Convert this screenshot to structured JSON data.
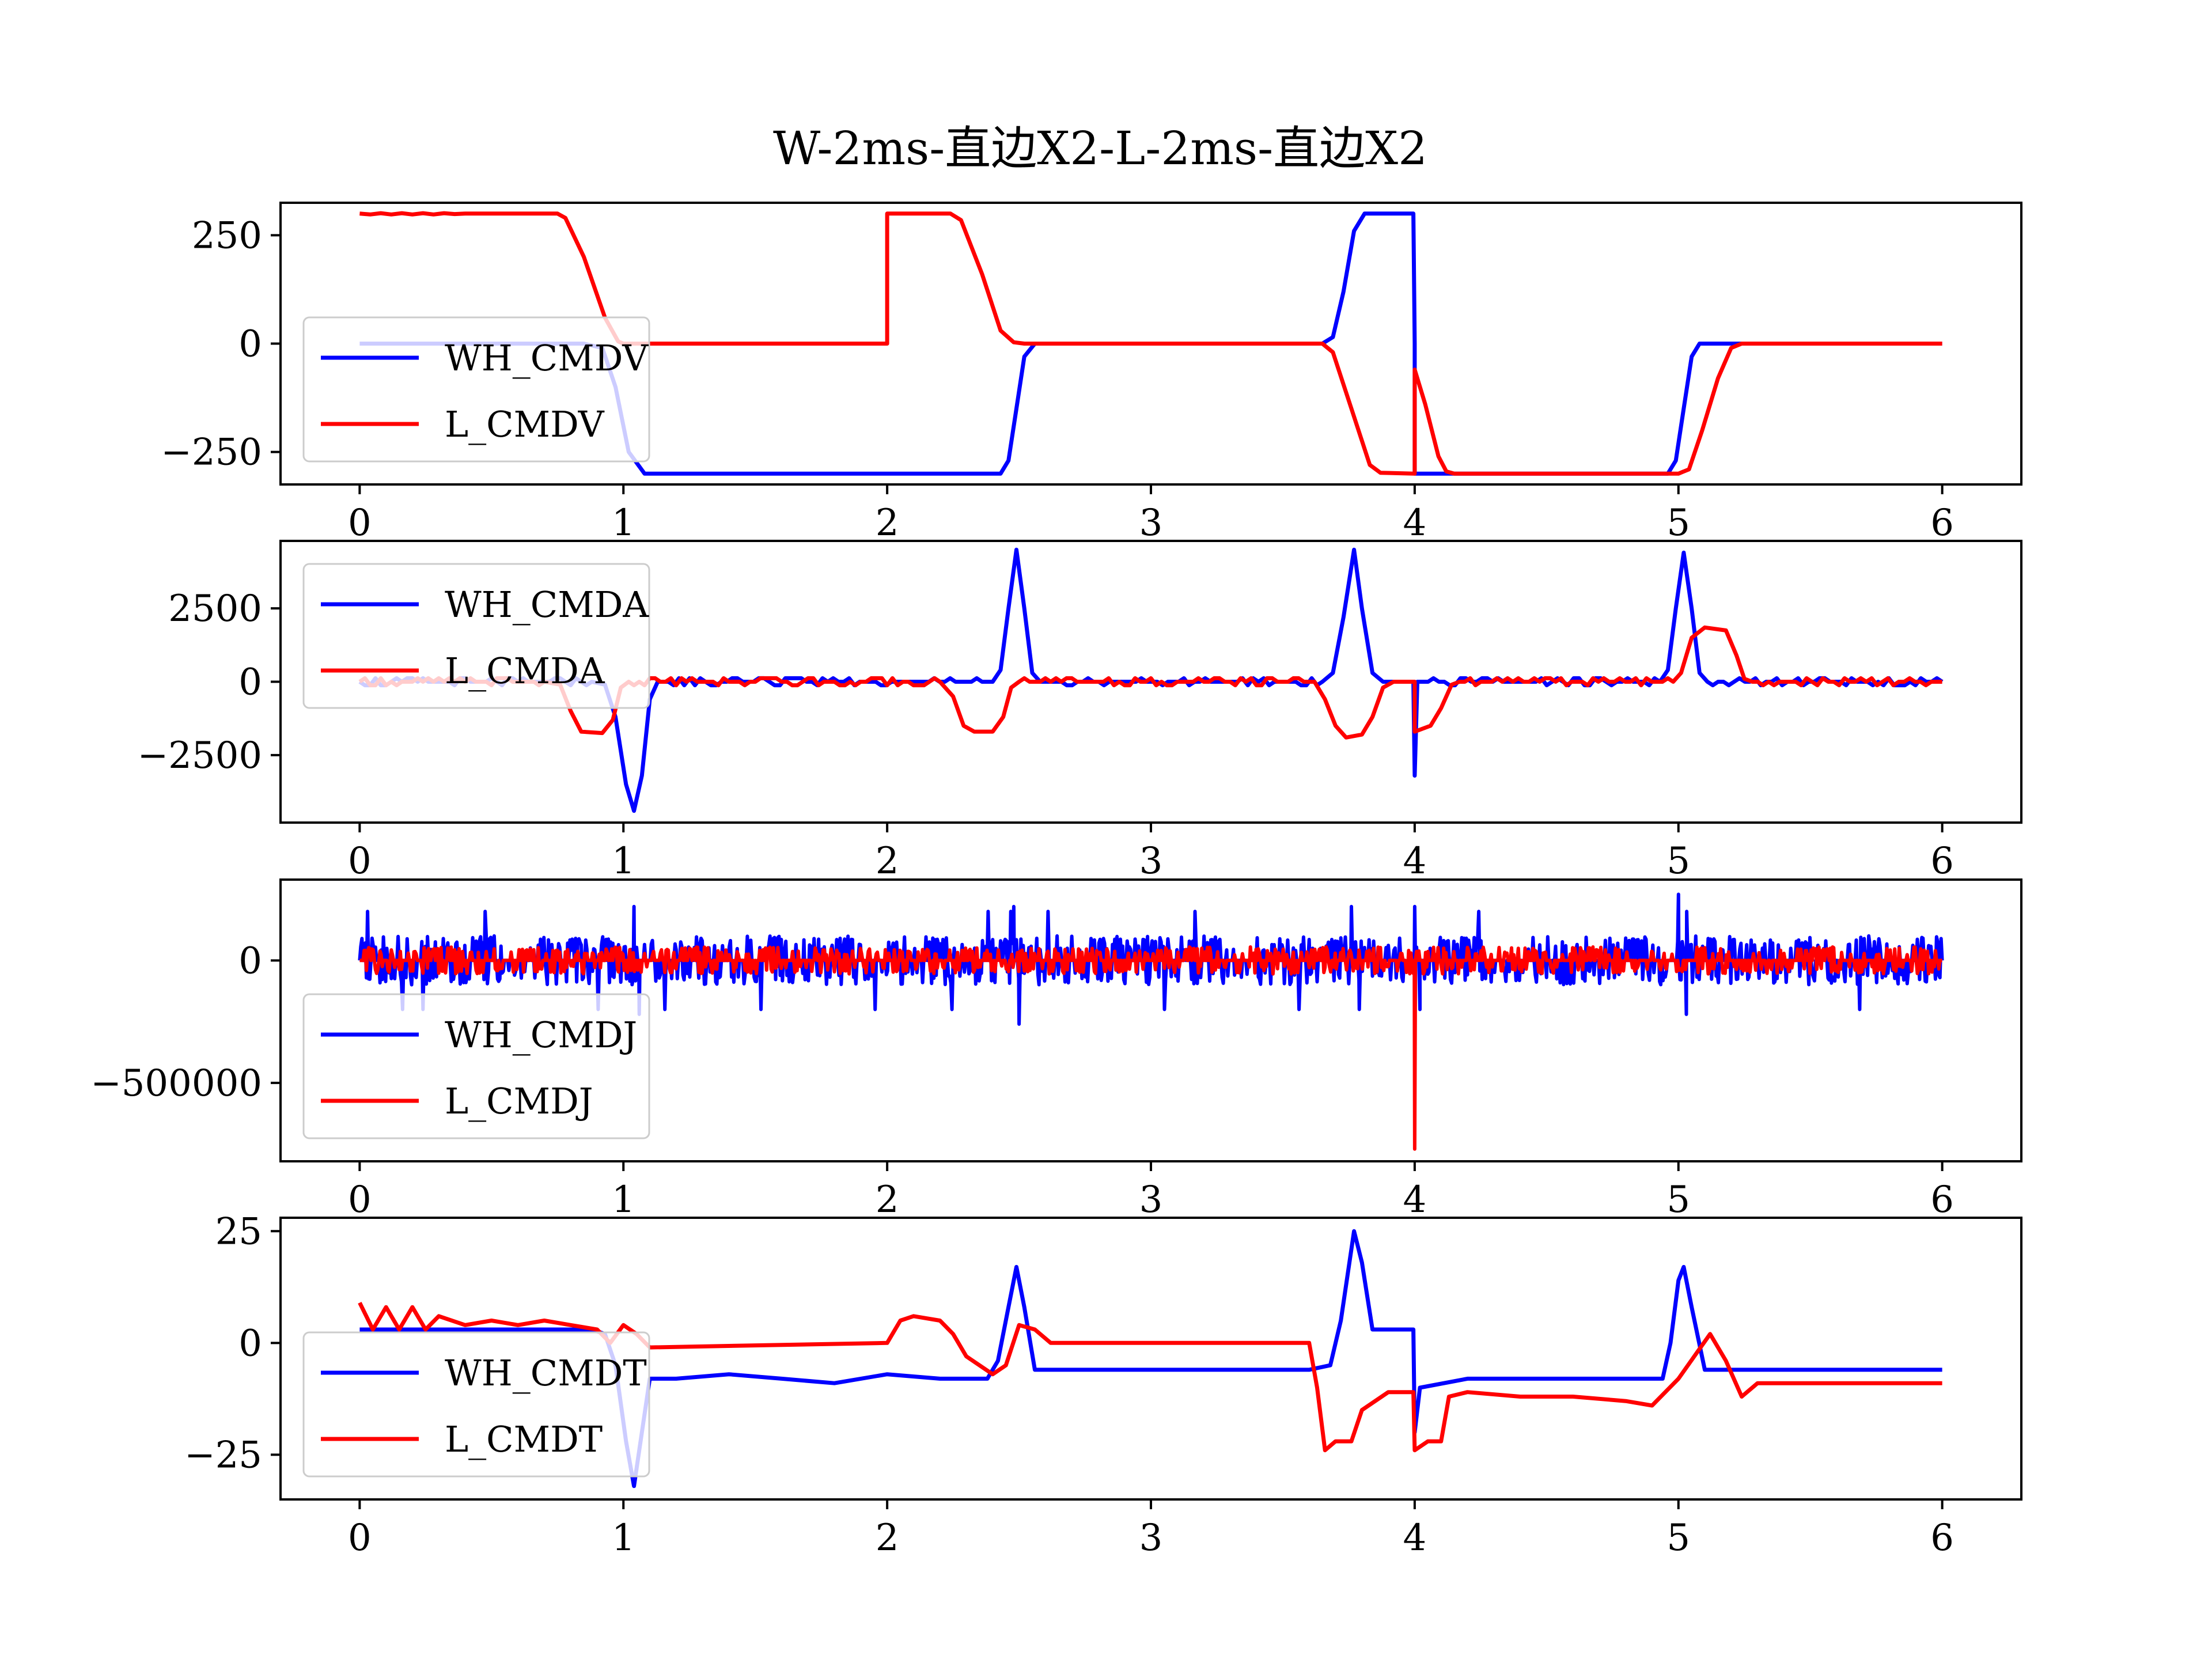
{
  "title": "W-2ms-直边X2-L-2ms-直边X2",
  "colors": {
    "wh": "#0000ff",
    "l": "#ff0000"
  },
  "chart_data": [
    {
      "type": "line",
      "ylim": [
        -325,
        325
      ],
      "xlim": [
        -0.3,
        6.3
      ],
      "xticks": [
        "0",
        "1",
        "2",
        "3",
        "4",
        "5",
        "6"
      ],
      "yticks": [
        {
          "value": 250,
          "label": "250"
        },
        {
          "value": 0,
          "label": "0"
        },
        {
          "value": -250,
          "label": "−250"
        }
      ],
      "legend": "lower-left",
      "series": [
        {
          "name": "WH_CMDV",
          "color": "#0000ff",
          "points": [
            [
              0,
              0
            ],
            [
              0.85,
              0
            ],
            [
              0.92,
              -10
            ],
            [
              0.97,
              -100
            ],
            [
              1.02,
              -250
            ],
            [
              1.08,
              -300
            ],
            [
              2.43,
              -300
            ],
            [
              2.46,
              -270
            ],
            [
              2.49,
              -150
            ],
            [
              2.52,
              -30
            ],
            [
              2.56,
              0
            ],
            [
              3.65,
              0
            ],
            [
              3.69,
              15
            ],
            [
              3.73,
              120
            ],
            [
              3.77,
              260
            ],
            [
              3.81,
              300
            ],
            [
              3.995,
              300
            ],
            [
              4.0,
              0
            ],
            [
              4.0,
              -300
            ],
            [
              4.15,
              -300
            ],
            [
              4.96,
              -300
            ],
            [
              4.99,
              -270
            ],
            [
              5.02,
              -150
            ],
            [
              5.05,
              -30
            ],
            [
              5.08,
              0
            ],
            [
              6.0,
              0
            ]
          ]
        },
        {
          "name": "L_CMDV",
          "color": "#ff0000",
          "points": [
            [
              0,
              300
            ],
            [
              0.04,
              298
            ],
            [
              0.08,
              301
            ],
            [
              0.12,
              298
            ],
            [
              0.16,
              301
            ],
            [
              0.2,
              298
            ],
            [
              0.24,
              301
            ],
            [
              0.28,
              298
            ],
            [
              0.32,
              301
            ],
            [
              0.36,
              299
            ],
            [
              0.4,
              300
            ],
            [
              0.75,
              300
            ],
            [
              0.78,
              290
            ],
            [
              0.85,
              200
            ],
            [
              0.93,
              60
            ],
            [
              0.98,
              5
            ],
            [
              1.0,
              0
            ],
            [
              2.0,
              0
            ],
            [
              2.0,
              300
            ],
            [
              2.24,
              300
            ],
            [
              2.28,
              285
            ],
            [
              2.36,
              160
            ],
            [
              2.43,
              30
            ],
            [
              2.48,
              3
            ],
            [
              2.52,
              0
            ],
            [
              3.65,
              0
            ],
            [
              3.69,
              -20
            ],
            [
              3.76,
              -150
            ],
            [
              3.83,
              -280
            ],
            [
              3.87,
              -298
            ],
            [
              4.0,
              -300
            ],
            [
              4.0,
              -60
            ],
            [
              4.04,
              -140
            ],
            [
              4.09,
              -260
            ],
            [
              4.12,
              -295
            ],
            [
              4.15,
              -300
            ],
            [
              5.0,
              -300
            ],
            [
              5.04,
              -290
            ],
            [
              5.09,
              -200
            ],
            [
              5.15,
              -80
            ],
            [
              5.2,
              -10
            ],
            [
              5.24,
              0
            ],
            [
              6.0,
              0
            ]
          ]
        }
      ]
    },
    {
      "type": "line",
      "ylim": [
        -4800,
        4800
      ],
      "xlim": [
        -0.3,
        6.3
      ],
      "xticks": [
        "0",
        "1",
        "2",
        "3",
        "4",
        "5",
        "6"
      ],
      "yticks": [
        {
          "value": 2500,
          "label": "2500"
        },
        {
          "value": 0,
          "label": "0"
        },
        {
          "value": -2500,
          "label": "−2500"
        }
      ],
      "legend": "upper-left",
      "series": [
        {
          "name": "WH_CMDA",
          "color": "#0000ff",
          "points": [
            [
              0,
              0
            ],
            [
              0.88,
              0
            ],
            [
              0.93,
              -100
            ],
            [
              0.97,
              -1200
            ],
            [
              1.01,
              -3500
            ],
            [
              1.04,
              -4400
            ],
            [
              1.07,
              -3200
            ],
            [
              1.1,
              -600
            ],
            [
              1.13,
              0
            ],
            [
              2.4,
              0
            ],
            [
              2.43,
              400
            ],
            [
              2.46,
              2500
            ],
            [
              2.49,
              4500
            ],
            [
              2.52,
              2500
            ],
            [
              2.55,
              300
            ],
            [
              2.58,
              0
            ],
            [
              3.65,
              0
            ],
            [
              3.69,
              300
            ],
            [
              3.73,
              2200
            ],
            [
              3.77,
              4500
            ],
            [
              3.8,
              2500
            ],
            [
              3.84,
              300
            ],
            [
              3.88,
              0
            ],
            [
              3.995,
              0
            ],
            [
              4.0,
              -3200
            ],
            [
              4.01,
              0
            ],
            [
              4.93,
              0
            ],
            [
              4.96,
              400
            ],
            [
              4.99,
              2500
            ],
            [
              5.02,
              4400
            ],
            [
              5.05,
              2500
            ],
            [
              5.08,
              300
            ],
            [
              5.11,
              0
            ],
            [
              6.0,
              0
            ]
          ]
        },
        {
          "name": "L_CMDA",
          "color": "#ff0000",
          "points": [
            [
              0,
              0
            ],
            [
              0.7,
              0
            ],
            [
              0.76,
              -100
            ],
            [
              0.8,
              -1000
            ],
            [
              0.84,
              -1700
            ],
            [
              0.92,
              -1750
            ],
            [
              0.96,
              -1300
            ],
            [
              0.99,
              -200
            ],
            [
              1.02,
              0
            ],
            [
              2.2,
              0
            ],
            [
              2.25,
              -500
            ],
            [
              2.29,
              -1500
            ],
            [
              2.33,
              -1700
            ],
            [
              2.4,
              -1700
            ],
            [
              2.44,
              -1200
            ],
            [
              2.47,
              -200
            ],
            [
              2.5,
              0
            ],
            [
              3.62,
              0
            ],
            [
              3.66,
              -600
            ],
            [
              3.7,
              -1500
            ],
            [
              3.74,
              -1900
            ],
            [
              3.8,
              -1800
            ],
            [
              3.84,
              -1200
            ],
            [
              3.88,
              -200
            ],
            [
              3.92,
              0
            ],
            [
              4.0,
              0
            ],
            [
              4.0,
              -1700
            ],
            [
              4.06,
              -1500
            ],
            [
              4.1,
              -900
            ],
            [
              4.14,
              -100
            ],
            [
              4.17,
              0
            ],
            [
              4.98,
              0
            ],
            [
              5.01,
              300
            ],
            [
              5.05,
              1500
            ],
            [
              5.1,
              1850
            ],
            [
              5.18,
              1750
            ],
            [
              5.22,
              900
            ],
            [
              5.25,
              100
            ],
            [
              5.28,
              0
            ],
            [
              6.0,
              0
            ]
          ]
        }
      ]
    },
    {
      "type": "line",
      "ylim": [
        -820000,
        330000
      ],
      "xlim": [
        -0.3,
        6.3
      ],
      "xticks": [
        "0",
        "1",
        "2",
        "3",
        "4",
        "5",
        "6"
      ],
      "yticks": [
        {
          "value": 0,
          "label": "0"
        },
        {
          "value": -500000,
          "label": "−500000"
        }
      ],
      "legend": "lower-left",
      "series": [
        {
          "name": "WH_CMDJ",
          "color": "#0000ff",
          "points": [
            [
              0,
              0
            ],
            [
              0.5,
              0
            ],
            [
              1.04,
              220000
            ],
            [
              1.06,
              -220000
            ],
            [
              2.48,
              220000
            ],
            [
              2.5,
              -260000
            ],
            [
              3.76,
              220000
            ],
            [
              3.79,
              -200000
            ],
            [
              4.0,
              220000
            ],
            [
              4.02,
              -200000
            ],
            [
              5.0,
              270000
            ],
            [
              5.03,
              -220000
            ],
            [
              6.0,
              0
            ]
          ]
        },
        {
          "name": "L_CMDJ",
          "color": "#ff0000",
          "points": [
            [
              0,
              0
            ],
            [
              3.99,
              0
            ],
            [
              4.0,
              -770000
            ],
            [
              4.01,
              0
            ],
            [
              6.0,
              0
            ]
          ]
        }
      ]
    },
    {
      "type": "line",
      "ylim": [
        -35,
        28
      ],
      "xlim": [
        -0.3,
        6.3
      ],
      "xticks": [
        "0",
        "1",
        "2",
        "3",
        "4",
        "5",
        "6"
      ],
      "yticks": [
        {
          "value": 25,
          "label": "25"
        },
        {
          "value": 0,
          "label": "0"
        },
        {
          "value": -25,
          "label": "−25"
        }
      ],
      "legend": "lower-left",
      "series": [
        {
          "name": "WH_CMDT",
          "color": "#0000ff",
          "points": [
            [
              0,
              3
            ],
            [
              0.88,
              3
            ],
            [
              0.93,
              2
            ],
            [
              0.97,
              -5
            ],
            [
              1.01,
              -22
            ],
            [
              1.04,
              -32
            ],
            [
              1.07,
              -20
            ],
            [
              1.1,
              -8
            ],
            [
              1.2,
              -8
            ],
            [
              1.4,
              -7
            ],
            [
              1.6,
              -8
            ],
            [
              1.8,
              -9
            ],
            [
              2.0,
              -7
            ],
            [
              2.2,
              -8
            ],
            [
              2.38,
              -8
            ],
            [
              2.42,
              -4
            ],
            [
              2.46,
              8
            ],
            [
              2.49,
              17
            ],
            [
              2.52,
              8
            ],
            [
              2.56,
              -6
            ],
            [
              3.6,
              -6
            ],
            [
              3.68,
              -5
            ],
            [
              3.72,
              5
            ],
            [
              3.77,
              25
            ],
            [
              3.8,
              18
            ],
            [
              3.84,
              3
            ],
            [
              3.995,
              3
            ],
            [
              4.0,
              -20
            ],
            [
              4.02,
              -10
            ],
            [
              4.2,
              -8
            ],
            [
              4.4,
              -8
            ],
            [
              4.6,
              -8
            ],
            [
              4.8,
              -8
            ],
            [
              4.94,
              -8
            ],
            [
              4.97,
              0
            ],
            [
              5.0,
              14
            ],
            [
              5.02,
              17
            ],
            [
              5.05,
              8
            ],
            [
              5.1,
              -6
            ],
            [
              6.0,
              -6
            ]
          ]
        },
        {
          "name": "L_CMDT",
          "color": "#ff0000",
          "points": [
            [
              0,
              9
            ],
            [
              0.05,
              3
            ],
            [
              0.1,
              8
            ],
            [
              0.15,
              3
            ],
            [
              0.2,
              8
            ],
            [
              0.25,
              3
            ],
            [
              0.3,
              6
            ],
            [
              0.4,
              4
            ],
            [
              0.5,
              5
            ],
            [
              0.6,
              4
            ],
            [
              0.7,
              5
            ],
            [
              0.8,
              4
            ],
            [
              0.9,
              3
            ],
            [
              0.95,
              0
            ],
            [
              1.0,
              4
            ],
            [
              1.05,
              2
            ],
            [
              1.1,
              -1
            ],
            [
              2.0,
              0
            ],
            [
              2.05,
              5
            ],
            [
              2.1,
              6
            ],
            [
              2.2,
              5
            ],
            [
              2.25,
              2
            ],
            [
              2.3,
              -3
            ],
            [
              2.4,
              -7
            ],
            [
              2.45,
              -5
            ],
            [
              2.5,
              4
            ],
            [
              2.56,
              3
            ],
            [
              2.62,
              0
            ],
            [
              3.6,
              0
            ],
            [
              3.63,
              -10
            ],
            [
              3.66,
              -24
            ],
            [
              3.7,
              -22
            ],
            [
              3.76,
              -22
            ],
            [
              3.8,
              -15
            ],
            [
              3.9,
              -11
            ],
            [
              3.995,
              -11
            ],
            [
              4.0,
              -24
            ],
            [
              4.05,
              -22
            ],
            [
              4.1,
              -22
            ],
            [
              4.13,
              -12
            ],
            [
              4.2,
              -11
            ],
            [
              4.4,
              -12
            ],
            [
              4.6,
              -12
            ],
            [
              4.8,
              -13
            ],
            [
              4.9,
              -14
            ],
            [
              5.0,
              -8
            ],
            [
              5.06,
              -3
            ],
            [
              5.12,
              2
            ],
            [
              5.18,
              -4
            ],
            [
              5.24,
              -12
            ],
            [
              5.3,
              -9
            ],
            [
              5.4,
              -9
            ],
            [
              6.0,
              -9
            ]
          ]
        }
      ]
    }
  ]
}
